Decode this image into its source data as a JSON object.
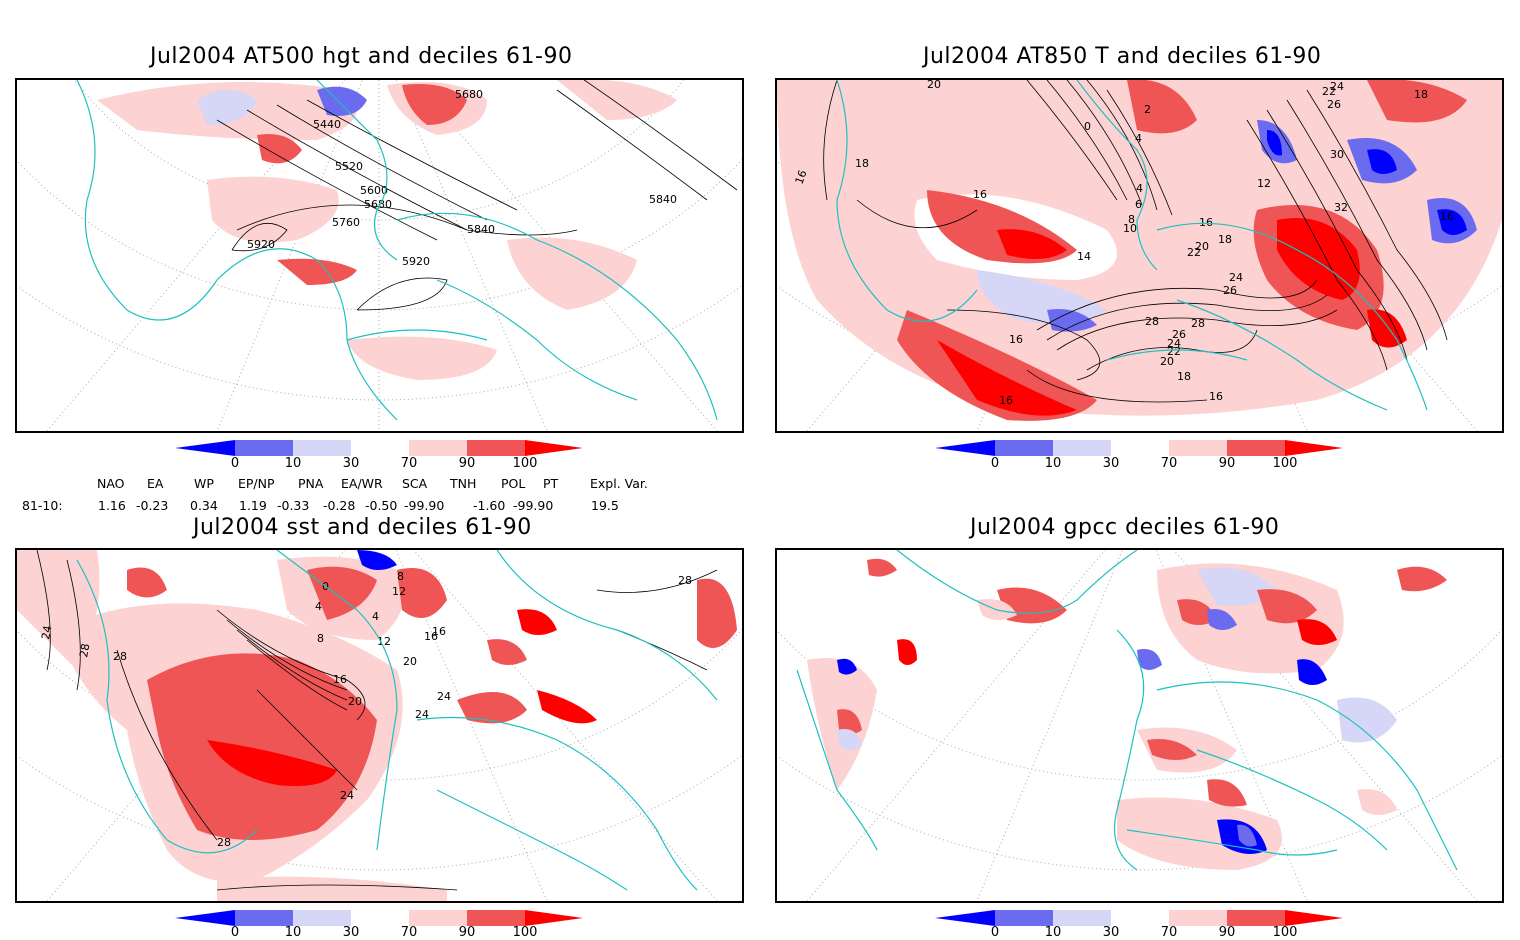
{
  "panels": [
    {
      "id": "p1",
      "title": "Jul2004 AT500 hgt and deciles 61-90",
      "contour_labels": [
        "5680",
        "5440",
        "5520",
        "5600",
        "5680",
        "5760",
        "5840",
        "5920",
        "5920",
        "5840"
      ]
    },
    {
      "id": "p2",
      "title": "Jul2004 AT850 T and deciles 61-90",
      "contour_labels": [
        "20",
        "18",
        "16",
        "16",
        "14",
        "16",
        "16",
        "16",
        "2",
        "4",
        "0",
        "4",
        "6",
        "8",
        "10",
        "12",
        "16",
        "18",
        "20",
        "22",
        "24",
        "26",
        "28",
        "28",
        "26",
        "24",
        "22",
        "20",
        "18",
        "22",
        "24",
        "26",
        "30",
        "32",
        "16",
        "18"
      ]
    },
    {
      "id": "p3",
      "title": "Jul2004 sst and deciles 61-90",
      "contour_labels": [
        "24",
        "28",
        "28",
        "24",
        "28",
        "28",
        "20",
        "16",
        "12",
        "8",
        "4",
        "16",
        "20",
        "24",
        "24",
        "0",
        "4",
        "8",
        "12",
        "16"
      ]
    },
    {
      "id": "p4",
      "title": "Jul2004 gpcc deciles 61-90",
      "contour_labels": []
    }
  ],
  "colorbar": {
    "ticks": [
      "0",
      "10",
      "30",
      "70",
      "90",
      "100"
    ],
    "colors": {
      "strong_blue": "#0000ff",
      "mid_blue": "#6b6bf0",
      "light_blue": "#d6d6f7",
      "white": "#ffffff",
      "light_red": "#fcd2d2",
      "mid_red": "#f05555",
      "strong_red": "#ff0000"
    }
  },
  "indices": {
    "headers": [
      "NAO",
      "EA",
      "WP",
      "EP/NP",
      "PNA",
      "EA/WR",
      "SCA",
      "TNH",
      "POL",
      "PT",
      "Expl. Var."
    ],
    "row_label": "81-10:",
    "values": [
      "1.16",
      "-0.23",
      "0.34",
      "1.19",
      "-0.33",
      "-0.28",
      "-0.50",
      "-99.90",
      "-1.60",
      "-99.90",
      "19.5"
    ]
  },
  "colors": {
    "coastline": "#20c0c0",
    "contour": "#000000",
    "grid": "#aaaaaa"
  }
}
